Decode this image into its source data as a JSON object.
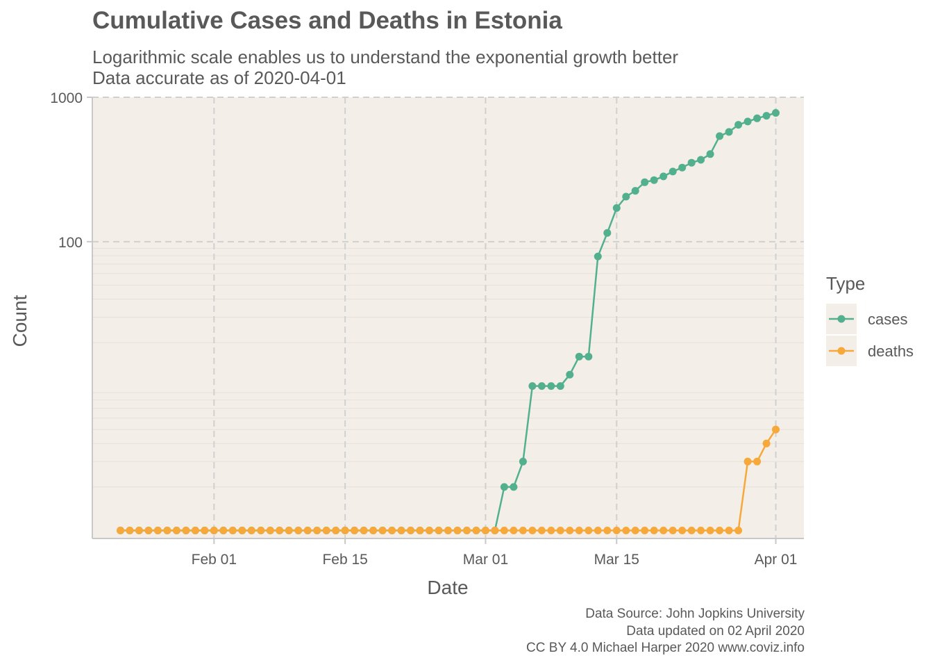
{
  "title": "Cumulative Cases and Deaths in Estonia",
  "subtitle_line1": "Logarithmic scale enables us to understand the exponential growth better",
  "subtitle_line2": "Data accurate as of 2020-04-01",
  "caption_line1": "Data Source: John Jopkins University",
  "caption_line2": "Data updated on 02 April 2020",
  "caption_line3": "CC BY 4.0 Michael Harper 2020 www.coviz.info",
  "colors": {
    "panel": "#f3eee7",
    "cases": "#52b08f",
    "deaths": "#f7a83a",
    "grid": "#d0d0d0"
  },
  "chart_data": {
    "type": "line",
    "xlabel": "Date",
    "ylabel": "Count",
    "y_scale": "log10",
    "ylim": [
      0.88,
      1000
    ],
    "xlim": [
      "2020-01-19",
      "2020-04-04"
    ],
    "x_ticks": [
      {
        "date": "2020-02-01",
        "label": "Feb 01"
      },
      {
        "date": "2020-02-15",
        "label": "Feb 15"
      },
      {
        "date": "2020-03-01",
        "label": "Mar 01"
      },
      {
        "date": "2020-03-15",
        "label": "Mar 15"
      },
      {
        "date": "2020-04-01",
        "label": "Apr 01"
      }
    ],
    "y_ticks": [
      {
        "value": 100,
        "label": "100"
      },
      {
        "value": 1000,
        "label": "1000"
      }
    ],
    "legend_title": "Type",
    "legend_position": "right",
    "x": [
      "2020-01-22",
      "2020-01-23",
      "2020-01-24",
      "2020-01-25",
      "2020-01-26",
      "2020-01-27",
      "2020-01-28",
      "2020-01-29",
      "2020-01-30",
      "2020-01-31",
      "2020-02-01",
      "2020-02-02",
      "2020-02-03",
      "2020-02-04",
      "2020-02-05",
      "2020-02-06",
      "2020-02-07",
      "2020-02-08",
      "2020-02-09",
      "2020-02-10",
      "2020-02-11",
      "2020-02-12",
      "2020-02-13",
      "2020-02-14",
      "2020-02-15",
      "2020-02-16",
      "2020-02-17",
      "2020-02-18",
      "2020-02-19",
      "2020-02-20",
      "2020-02-21",
      "2020-02-22",
      "2020-02-23",
      "2020-02-24",
      "2020-02-25",
      "2020-02-26",
      "2020-02-27",
      "2020-02-28",
      "2020-02-29",
      "2020-03-01",
      "2020-03-02",
      "2020-03-03",
      "2020-03-04",
      "2020-03-05",
      "2020-03-06",
      "2020-03-07",
      "2020-03-08",
      "2020-03-09",
      "2020-03-10",
      "2020-03-11",
      "2020-03-12",
      "2020-03-13",
      "2020-03-14",
      "2020-03-15",
      "2020-03-16",
      "2020-03-17",
      "2020-03-18",
      "2020-03-19",
      "2020-03-20",
      "2020-03-21",
      "2020-03-22",
      "2020-03-23",
      "2020-03-24",
      "2020-03-25",
      "2020-03-26",
      "2020-03-27",
      "2020-03-28",
      "2020-03-29",
      "2020-03-30",
      "2020-03-31",
      "2020-04-01"
    ],
    "series": [
      {
        "name": "cases",
        "values": [
          0,
          0,
          0,
          0,
          0,
          0,
          0,
          0,
          0,
          0,
          0,
          0,
          0,
          0,
          0,
          0,
          0,
          0,
          0,
          0,
          0,
          0,
          0,
          0,
          0,
          0,
          0,
          0,
          0,
          0,
          0,
          0,
          0,
          0,
          0,
          0,
          1,
          1,
          1,
          1,
          1,
          2,
          2,
          3,
          10,
          10,
          10,
          10,
          12,
          16,
          16,
          79,
          115,
          171,
          205,
          225,
          258,
          267,
          283,
          306,
          326,
          352,
          369,
          404,
          538,
          575,
          645,
          679,
          715,
          745,
          779
        ]
      },
      {
        "name": "deaths",
        "values": [
          0,
          0,
          0,
          0,
          0,
          0,
          0,
          0,
          0,
          0,
          0,
          0,
          0,
          0,
          0,
          0,
          0,
          0,
          0,
          0,
          0,
          0,
          0,
          0,
          0,
          0,
          0,
          0,
          0,
          0,
          0,
          0,
          0,
          0,
          0,
          0,
          0,
          0,
          0,
          0,
          0,
          0,
          0,
          0,
          0,
          0,
          0,
          0,
          0,
          0,
          0,
          0,
          0,
          0,
          0,
          0,
          0,
          0,
          0,
          0,
          0,
          0,
          0,
          1,
          1,
          1,
          1,
          3,
          3,
          4,
          5
        ]
      }
    ]
  }
}
